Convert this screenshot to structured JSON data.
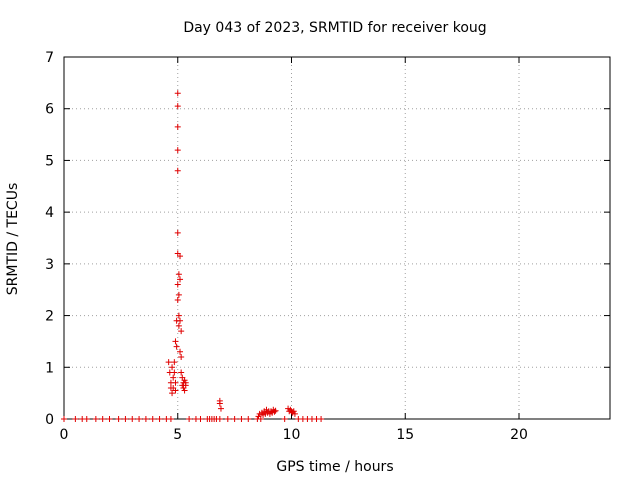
{
  "chart_data": {
    "type": "scatter",
    "title": "Day 043 of 2023, SRMTID for receiver koug",
    "xlabel": "GPS time / hours",
    "ylabel": "SRMTID / TECUs",
    "xlim": [
      0,
      24
    ],
    "ylim": [
      0,
      7
    ],
    "xticks": [
      "0",
      "5",
      "10",
      "15",
      "20"
    ],
    "yticks": [
      "0",
      "1",
      "2",
      "3",
      "4",
      "5",
      "6",
      "7"
    ],
    "grid": true,
    "marker": "plus",
    "color": "#e00000",
    "points": [
      [
        0.0,
        0
      ],
      [
        0.5,
        0
      ],
      [
        0.8,
        0
      ],
      [
        1.0,
        0
      ],
      [
        1.4,
        0
      ],
      [
        1.7,
        0
      ],
      [
        2.0,
        0
      ],
      [
        2.4,
        0
      ],
      [
        2.7,
        0
      ],
      [
        3.0,
        0
      ],
      [
        3.3,
        0
      ],
      [
        3.6,
        0
      ],
      [
        3.9,
        0
      ],
      [
        4.2,
        0
      ],
      [
        4.5,
        0
      ],
      [
        4.7,
        0
      ],
      [
        4.6,
        1.1
      ],
      [
        4.65,
        0.9
      ],
      [
        4.7,
        0.7
      ],
      [
        4.7,
        0.6
      ],
      [
        4.75,
        0.5
      ],
      [
        4.75,
        1.0
      ],
      [
        4.8,
        0.8
      ],
      [
        4.8,
        0.6
      ],
      [
        4.85,
        1.1
      ],
      [
        4.85,
        0.9
      ],
      [
        4.9,
        0.7
      ],
      [
        4.9,
        0.55
      ],
      [
        4.9,
        1.5
      ],
      [
        4.95,
        1.9
      ],
      [
        4.95,
        1.4
      ],
      [
        5.0,
        2.3
      ],
      [
        5.0,
        2.6
      ],
      [
        5.0,
        3.2
      ],
      [
        5.0,
        3.6
      ],
      [
        5.0,
        4.8
      ],
      [
        5.0,
        5.2
      ],
      [
        5.0,
        5.65
      ],
      [
        5.0,
        6.05
      ],
      [
        5.0,
        6.3
      ],
      [
        5.05,
        2.0
      ],
      [
        5.05,
        1.8
      ],
      [
        5.05,
        2.8
      ],
      [
        5.05,
        2.4
      ],
      [
        5.1,
        3.15
      ],
      [
        5.1,
        1.9
      ],
      [
        5.1,
        2.7
      ],
      [
        5.1,
        1.3
      ],
      [
        5.15,
        1.7
      ],
      [
        5.15,
        1.2
      ],
      [
        5.15,
        0.9
      ],
      [
        5.2,
        0.8
      ],
      [
        5.2,
        0.65
      ],
      [
        5.25,
        0.7
      ],
      [
        5.25,
        0.6
      ],
      [
        5.3,
        0.75
      ],
      [
        5.3,
        0.55
      ],
      [
        5.35,
        0.65
      ],
      [
        5.35,
        0.7
      ],
      [
        5.5,
        0
      ],
      [
        5.8,
        0
      ],
      [
        6.0,
        0
      ],
      [
        6.3,
        0
      ],
      [
        6.4,
        0
      ],
      [
        6.5,
        0
      ],
      [
        6.6,
        0
      ],
      [
        6.7,
        0
      ],
      [
        6.85,
        0
      ],
      [
        6.85,
        0.35
      ],
      [
        6.85,
        0.3
      ],
      [
        6.9,
        0.2
      ],
      [
        7.2,
        0
      ],
      [
        7.5,
        0
      ],
      [
        7.8,
        0
      ],
      [
        8.1,
        0
      ],
      [
        8.5,
        0
      ],
      [
        8.55,
        0.05
      ],
      [
        8.6,
        0.1
      ],
      [
        8.65,
        0
      ],
      [
        8.7,
        0.12
      ],
      [
        8.75,
        0.08
      ],
      [
        8.8,
        0.15
      ],
      [
        8.85,
        0.1
      ],
      [
        8.9,
        0.18
      ],
      [
        8.95,
        0.12
      ],
      [
        9.0,
        0.15
      ],
      [
        9.05,
        0.1
      ],
      [
        9.1,
        0.15
      ],
      [
        9.15,
        0.12
      ],
      [
        9.2,
        0.18
      ],
      [
        9.25,
        0.14
      ],
      [
        9.3,
        0.16
      ],
      [
        9.7,
        0
      ],
      [
        9.85,
        0.2
      ],
      [
        9.9,
        0.15
      ],
      [
        9.95,
        0.18
      ],
      [
        10.0,
        0.15
      ],
      [
        10.05,
        0.12
      ],
      [
        10.1,
        0.15
      ],
      [
        10.15,
        0.1
      ],
      [
        10.3,
        0
      ],
      [
        10.5,
        0
      ],
      [
        10.7,
        0
      ],
      [
        10.9,
        0
      ],
      [
        11.1,
        0
      ],
      [
        11.3,
        0
      ]
    ]
  }
}
